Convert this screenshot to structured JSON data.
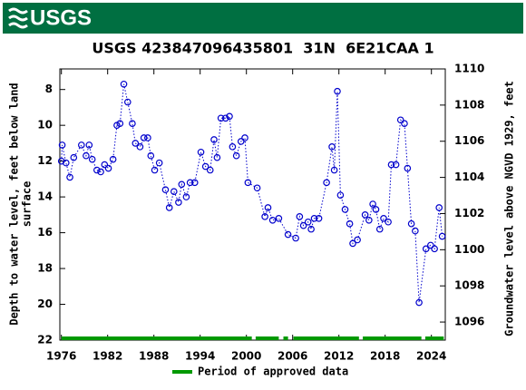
{
  "header": {
    "logo": "USGS"
  },
  "chart_data": {
    "type": "scatter",
    "title": "USGS 423847096435801  31N  6E21CAA 1",
    "ylabel": [
      "Depth to water level, feet below land",
      "surface"
    ],
    "y2label": "Groundwater level above NGVD 1929, feet",
    "xlim": [
      1975.8,
      2025.8
    ],
    "xticks": [
      1976,
      1982,
      1988,
      1994,
      2000,
      2006,
      2012,
      2018,
      2024
    ],
    "ylim": [
      6.85,
      22
    ],
    "y_inverted": true,
    "yticks": [
      8,
      10,
      12,
      14,
      16,
      18,
      20,
      22
    ],
    "y2lim": [
      1095.0,
      1110.0
    ],
    "y2ticks": [
      1096,
      1098,
      1100,
      1102,
      1104,
      1106,
      1108,
      1110
    ],
    "series": [
      {
        "name": "Depth to water level",
        "color": "#0000cc",
        "x": [
          1976.0,
          1976.1,
          1976.6,
          1977.1,
          1977.6,
          1978.6,
          1979.2,
          1979.6,
          1980.0,
          1980.6,
          1981.1,
          1981.6,
          1982.1,
          1982.7,
          1983.2,
          1983.6,
          1984.1,
          1984.6,
          1985.2,
          1985.6,
          1986.2,
          1986.7,
          1987.2,
          1987.6,
          1988.1,
          1988.7,
          1989.5,
          1990.0,
          1990.6,
          1991.2,
          1991.6,
          1992.2,
          1992.7,
          1993.3,
          1994.1,
          1994.7,
          1995.3,
          1995.8,
          1996.2,
          1996.7,
          1997.3,
          1997.8,
          1998.2,
          1998.7,
          1999.3,
          1999.8,
          2000.2,
          2001.4,
          2002.4,
          2002.8,
          2003.4,
          2004.2,
          2005.4,
          2006.4,
          2006.9,
          2007.4,
          2008.0,
          2008.4,
          2008.8,
          2009.4,
          2010.4,
          2011.1,
          2011.4,
          2011.8,
          2012.2,
          2012.8,
          2013.4,
          2013.8,
          2014.4,
          2015.4,
          2015.9,
          2016.4,
          2016.8,
          2017.3,
          2017.8,
          2018.4,
          2018.8,
          2019.4,
          2020.0,
          2020.5,
          2020.9,
          2021.4,
          2021.9,
          2022.4,
          2023.3,
          2023.9,
          2024.4,
          2025.0,
          2025.4
        ],
        "values": [
          12.0,
          11.1,
          12.1,
          12.9,
          11.8,
          11.1,
          11.7,
          11.1,
          11.9,
          12.5,
          12.6,
          12.2,
          12.4,
          11.9,
          10.0,
          9.9,
          7.7,
          8.7,
          9.9,
          11.0,
          11.2,
          10.7,
          10.7,
          11.7,
          12.5,
          12.1,
          13.6,
          14.6,
          13.7,
          14.3,
          13.3,
          14.0,
          13.2,
          13.2,
          11.5,
          12.3,
          12.5,
          10.8,
          11.8,
          9.6,
          9.6,
          9.5,
          11.2,
          11.7,
          10.9,
          10.7,
          13.2,
          13.5,
          15.1,
          14.6,
          15.3,
          15.2,
          16.1,
          16.3,
          15.1,
          15.6,
          15.4,
          15.8,
          15.2,
          15.2,
          13.2,
          11.2,
          12.5,
          8.1,
          13.9,
          14.7,
          15.5,
          16.6,
          16.4,
          15.0,
          15.3,
          14.4,
          14.7,
          15.8,
          15.2,
          15.4,
          12.2,
          12.2,
          9.7,
          9.9,
          12.4,
          15.5,
          15.9,
          19.9,
          16.9,
          16.7,
          16.9,
          14.6,
          16.2
        ]
      }
    ],
    "approved_periods": {
      "name": "Period of approved data",
      "color": "#009900",
      "ranges": [
        [
          1976.0,
          2000.7
        ],
        [
          2001.2,
          2004.2
        ],
        [
          2004.8,
          2005.4
        ],
        [
          2006.1,
          2014.6
        ],
        [
          2015.1,
          2022.7
        ],
        [
          2023.2,
          2025.6
        ]
      ]
    }
  }
}
